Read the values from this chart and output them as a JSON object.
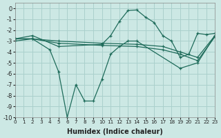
{
  "bg_color": "#cce8e4",
  "grid_color": "#aad0cc",
  "line_color": "#1e6b5a",
  "xlabel": "Humidex (Indice chaleur)",
  "xlim": [
    0,
    23
  ],
  "ylim": [
    -10,
    0.5
  ],
  "yticks": [
    0,
    -1,
    -2,
    -3,
    -4,
    -5,
    -6,
    -7,
    -8,
    -9,
    -10
  ],
  "xticks": [
    0,
    1,
    2,
    3,
    4,
    5,
    6,
    7,
    8,
    9,
    10,
    11,
    12,
    13,
    14,
    15,
    16,
    17,
    18,
    19,
    20,
    21,
    22,
    23
  ],
  "lines": [
    {
      "x": [
        0,
        2,
        5,
        10,
        11,
        12,
        13,
        14,
        15,
        16,
        17,
        18,
        19,
        20,
        21,
        22,
        23
      ],
      "y": [
        -2.8,
        -2.5,
        -3.5,
        -3.3,
        -2.5,
        -1.2,
        -0.2,
        -0.15,
        -0.8,
        -1.3,
        -2.5,
        -3.0,
        -4.5,
        -4.2,
        -2.3,
        -2.4,
        -2.3
      ]
    },
    {
      "x": [
        0,
        2,
        4,
        5,
        6,
        7,
        8,
        9,
        10,
        11,
        12,
        13,
        14,
        19,
        21,
        23
      ],
      "y": [
        -2.8,
        -2.8,
        -3.8,
        -5.8,
        -10.0,
        -7.0,
        -8.5,
        -8.5,
        -6.5,
        -4.2,
        -3.5,
        -3.0,
        -3.0,
        -5.5,
        -5.0,
        -2.5
      ]
    },
    {
      "x": [
        0,
        2,
        5,
        10,
        14,
        17,
        19,
        21,
        23
      ],
      "y": [
        -2.8,
        -2.8,
        -3.0,
        -3.2,
        -3.3,
        -3.5,
        -4.0,
        -4.5,
        -2.5
      ]
    },
    {
      "x": [
        0,
        2,
        5,
        10,
        14,
        17,
        19,
        21,
        23
      ],
      "y": [
        -3.0,
        -2.8,
        -3.2,
        -3.4,
        -3.5,
        -3.8,
        -4.2,
        -4.8,
        -2.6
      ]
    }
  ]
}
